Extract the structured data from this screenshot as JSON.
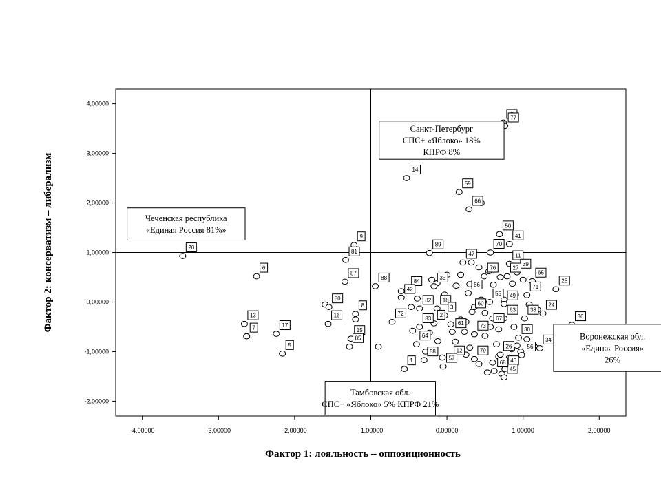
{
  "chart_data": {
    "type": "scatter",
    "xlabel": "Фактор 1: лояльность – оппозиционность",
    "ylabel": "Фактор 2: консерватизм – либерализм",
    "xlim": [
      -4.35,
      2.35
    ],
    "ylim": [
      -2.3,
      4.3
    ],
    "xticks": [
      -4,
      -3,
      -2,
      -1,
      0,
      1,
      2
    ],
    "xtick_labels": [
      "-4,00000",
      "-3,00000",
      "-2,00000",
      "-1,00000",
      "0,00000",
      "1,00000",
      "2,00000"
    ],
    "yticks": [
      -2,
      -1,
      0,
      1,
      2,
      3,
      4
    ],
    "ytick_labels": [
      "-2,00000",
      "-1,00000",
      "0,00000",
      "1,00000",
      "2,00000",
      "3,00000",
      "4,00000"
    ],
    "reference_lines": {
      "x": -1.0,
      "y": 1.0
    },
    "grid": false,
    "labeled_points": [
      {
        "label": "78",
        "x": 0.74,
        "y": 3.62
      },
      {
        "label": "77",
        "x": 0.76,
        "y": 3.55
      },
      {
        "label": "14",
        "x": -0.53,
        "y": 2.5
      },
      {
        "label": "59",
        "x": 0.16,
        "y": 2.22
      },
      {
        "label": "66",
        "x": 0.29,
        "y": 1.87
      },
      {
        "label": "50",
        "x": 0.69,
        "y": 1.37
      },
      {
        "label": "41",
        "x": 0.82,
        "y": 1.17
      },
      {
        "label": "9",
        "x": -1.22,
        "y": 1.15
      },
      {
        "label": "20",
        "x": -3.47,
        "y": 0.93
      },
      {
        "label": "89",
        "x": -0.23,
        "y": 0.99
      },
      {
        "label": "70",
        "x": 0.57,
        "y": 1.0
      },
      {
        "label": "47",
        "x": 0.21,
        "y": 0.8
      },
      {
        "label": "11",
        "x": 0.82,
        "y": 0.77
      },
      {
        "label": "6",
        "x": -2.5,
        "y": 0.52
      },
      {
        "label": "81",
        "x": -1.33,
        "y": 0.85
      },
      {
        "label": "39",
        "x": 0.92,
        "y": 0.6
      },
      {
        "label": "76",
        "x": 0.49,
        "y": 0.52
      },
      {
        "label": "27",
        "x": 0.79,
        "y": 0.52
      },
      {
        "label": "65",
        "x": 1.12,
        "y": 0.42
      },
      {
        "label": "25",
        "x": 1.43,
        "y": 0.26
      },
      {
        "label": "88",
        "x": -0.94,
        "y": 0.32
      },
      {
        "label": "87",
        "x": -1.34,
        "y": 0.41
      },
      {
        "label": "84",
        "x": -0.51,
        "y": 0.25
      },
      {
        "label": "35",
        "x": -0.17,
        "y": 0.32
      },
      {
        "label": "86",
        "x": 0.28,
        "y": 0.18
      },
      {
        "label": "71",
        "x": 1.05,
        "y": 0.14
      },
      {
        "label": "80",
        "x": -1.55,
        "y": -0.1
      },
      {
        "label": "42",
        "x": -0.6,
        "y": 0.09
      },
      {
        "label": "82",
        "x": -0.36,
        "y": -0.13
      },
      {
        "label": "18",
        "x": -0.13,
        "y": -0.13
      },
      {
        "label": "3",
        "x": -0.03,
        "y": -0.27
      },
      {
        "label": "60",
        "x": 0.33,
        "y": -0.2
      },
      {
        "label": "55",
        "x": 0.56,
        "y": 0.0
      },
      {
        "label": "49",
        "x": 0.75,
        "y": -0.04
      },
      {
        "label": "13",
        "x": -2.66,
        "y": -0.44
      },
      {
        "label": "16",
        "x": -1.56,
        "y": -0.44
      },
      {
        "label": "8",
        "x": -1.2,
        "y": -0.24
      },
      {
        "label": "72",
        "x": -0.72,
        "y": -0.4
      },
      {
        "label": "83",
        "x": -0.36,
        "y": -0.5
      },
      {
        "label": "2",
        "x": -0.17,
        "y": -0.43
      },
      {
        "label": "63",
        "x": 0.75,
        "y": -0.33
      },
      {
        "label": "38",
        "x": 1.02,
        "y": -0.33
      },
      {
        "label": "24",
        "x": 1.26,
        "y": -0.23
      },
      {
        "label": "36",
        "x": 1.64,
        "y": -0.46
      },
      {
        "label": "7",
        "x": -2.63,
        "y": -0.69
      },
      {
        "label": "17",
        "x": -2.24,
        "y": -0.64
      },
      {
        "label": "15",
        "x": -1.26,
        "y": -0.74
      },
      {
        "label": "61",
        "x": 0.07,
        "y": -0.6
      },
      {
        "label": "73",
        "x": 0.36,
        "y": -0.65
      },
      {
        "label": "67",
        "x": 0.57,
        "y": -0.5
      },
      {
        "label": "30",
        "x": 0.94,
        "y": -0.72
      },
      {
        "label": "34",
        "x": 1.22,
        "y": -0.93
      },
      {
        "label": "5",
        "x": -2.16,
        "y": -1.04
      },
      {
        "label": "85",
        "x": -1.28,
        "y": -0.9
      },
      {
        "label": "64",
        "x": -0.4,
        "y": -0.85
      },
      {
        "label": "1",
        "x": -0.56,
        "y": -1.35
      },
      {
        "label": "58",
        "x": -0.3,
        "y": -1.17
      },
      {
        "label": "12",
        "x": 0.05,
        "y": -1.15
      },
      {
        "label": "79",
        "x": 0.36,
        "y": -1.15
      },
      {
        "label": "26",
        "x": 0.7,
        "y": -1.06
      },
      {
        "label": "46",
        "x": 0.76,
        "y": -1.35
      },
      {
        "label": "56",
        "x": 0.98,
        "y": -1.07
      },
      {
        "label": "57",
        "x": -0.05,
        "y": -1.3
      },
      {
        "label": "45",
        "x": 0.75,
        "y": -1.52
      },
      {
        "label": "68",
        "x": 0.62,
        "y": -1.39
      }
    ],
    "unlabeled_points": [
      [
        0.45,
        2.0
      ],
      [
        -0.2,
        0.45
      ],
      [
        0.0,
        0.55
      ],
      [
        0.42,
        0.7
      ],
      [
        0.61,
        0.35
      ],
      [
        0.86,
        0.37
      ],
      [
        1.0,
        0.45
      ],
      [
        0.9,
        0.15
      ],
      [
        0.75,
        0.05
      ],
      [
        0.45,
        0.05
      ],
      [
        0.36,
        -0.1
      ],
      [
        0.5,
        -0.22
      ],
      [
        0.6,
        -0.33
      ],
      [
        0.68,
        -0.55
      ],
      [
        1.08,
        -0.05
      ],
      [
        1.19,
        -0.15
      ],
      [
        0.25,
        -0.4
      ],
      [
        0.05,
        -0.45
      ],
      [
        0.18,
        -0.35
      ],
      [
        -0.47,
        -0.1
      ],
      [
        -0.6,
        0.22
      ],
      [
        -0.39,
        0.07
      ],
      [
        -0.13,
        0.38
      ],
      [
        0.3,
        0.36
      ],
      [
        0.7,
        0.5
      ],
      [
        0.88,
        -0.5
      ],
      [
        1.05,
        -0.75
      ],
      [
        1.15,
        -0.9
      ],
      [
        0.97,
        -1.0
      ],
      [
        0.85,
        -0.95
      ],
      [
        0.65,
        -0.85
      ],
      [
        0.5,
        -0.68
      ],
      [
        0.23,
        -0.6
      ],
      [
        0.11,
        -0.8
      ],
      [
        -0.12,
        -0.79
      ],
      [
        -0.23,
        -0.62
      ],
      [
        -0.28,
        -1.0
      ],
      [
        -0.06,
        -1.12
      ],
      [
        0.3,
        -0.92
      ],
      [
        0.42,
        -1.25
      ],
      [
        0.6,
        -1.22
      ],
      [
        0.68,
        -1.1
      ],
      [
        0.82,
        -1.12
      ],
      [
        0.92,
        -0.88
      ],
      [
        0.72,
        -1.45
      ],
      [
        0.53,
        -1.42
      ],
      [
        0.25,
        -1.06
      ],
      [
        -0.45,
        -0.58
      ],
      [
        -1.2,
        -0.35
      ],
      [
        -1.6,
        -0.05
      ],
      [
        -0.9,
        -0.9
      ],
      [
        0.55,
        0.62
      ],
      [
        0.32,
        0.8
      ],
      [
        0.18,
        0.55
      ],
      [
        0.12,
        0.33
      ],
      [
        -0.03,
        0.15
      ]
    ],
    "annotations": [
      {
        "lines": [
          "Санкт-Петербург",
          "СПС+ «Яблоко» 18%",
          "КПРФ 8%"
        ],
        "x": -0.89,
        "y": 3.65,
        "x2": 0.75,
        "y2": 2.88
      },
      {
        "lines": [
          "Чеченская республика",
          "«Единая Россия 81%»"
        ],
        "x": -4.2,
        "y": 1.9,
        "x2": -2.65,
        "y2": 1.25
      },
      {
        "lines": [
          "Воронежская обл.",
          "«Единая Россия»",
          "26%"
        ],
        "x": 1.4,
        "y": -0.45,
        "x2": 2.95,
        "y2": -1.4
      },
      {
        "lines": [
          "Тамбовская обл.",
          "СПС+ «Яблоко» 5% КПРФ 21%"
        ],
        "x": -1.6,
        "y": -1.6,
        "x2": -0.15,
        "y2": -2.28
      }
    ]
  }
}
